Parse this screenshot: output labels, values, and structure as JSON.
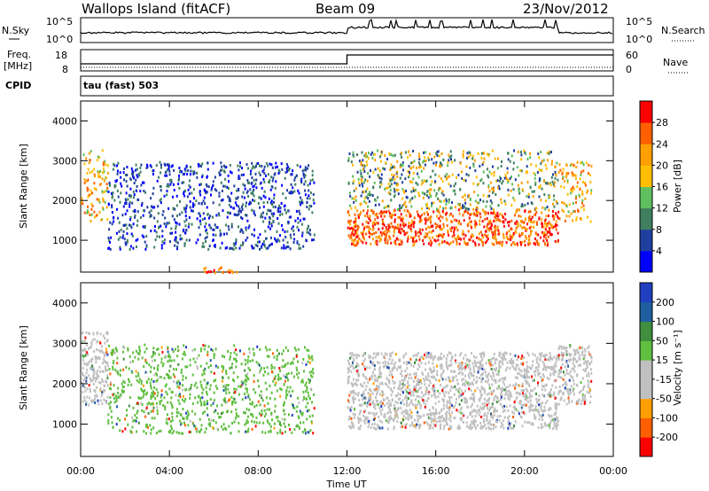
{
  "header": {
    "station": "Wallops Island (fitACF)",
    "beam": "Beam 09",
    "date": "23/Nov/2012"
  },
  "top_panel": {
    "left_label": "N.Sky",
    "right_label": "N.Search",
    "left_ticks": [
      "10^5",
      "10^0"
    ],
    "right_ticks": [
      "10^5",
      "10^0"
    ]
  },
  "freq_panel": {
    "left_label_line1": "Freq.",
    "left_label_line2": "[MHz]",
    "right_label": "Nave",
    "left_ticks": [
      "18",
      "8"
    ],
    "right_ticks": [
      "60",
      "0"
    ]
  },
  "cpid_panel": {
    "label": "CPID",
    "text": "tau (fast) 503"
  },
  "colors": {
    "power_scale": [
      "#0000ff",
      "#1f3f9f",
      "#3f7f5f",
      "#5fbf5f",
      "#ffbf00",
      "#ff9f00",
      "#ff5f00",
      "#ff0000"
    ],
    "velocity_scale": [
      "#ff0000",
      "#ff5f00",
      "#ff9f00",
      "#c0c0c0",
      "#c0c0c0",
      "#5fbf3f",
      "#3f8f3f",
      "#1f5f9f",
      "#1f3fbf"
    ]
  },
  "chart_data": [
    {
      "type": "heatmap",
      "title": "",
      "xlabel": "",
      "ylabel": "Slant Range [km]",
      "xlim": [
        "00:00",
        "24:00"
      ],
      "ylim": [
        200,
        4500
      ],
      "x_ticks": [
        "00:00",
        "04:00",
        "08:00",
        "12:00",
        "16:00",
        "20:00",
        "00:00"
      ],
      "y_ticks": [
        1000,
        2000,
        3000,
        4000
      ],
      "colorbar_label": "Power [dB]",
      "colorbar_ticks": [
        "4",
        "8",
        "12",
        "16",
        "20",
        "24",
        "28"
      ],
      "colorbar_range": [
        0,
        32
      ],
      "regions": [
        {
          "t_start": 0.0,
          "t_end": 1.2,
          "r_min": 1500,
          "r_max": 3300,
          "level": "high-edge"
        },
        {
          "t_start": 1.2,
          "t_end": 10.5,
          "r_min": 800,
          "r_max": 3000,
          "level": "low"
        },
        {
          "t_start": 5.5,
          "t_end": 7.0,
          "r_min": 200,
          "r_max": 350,
          "level": "high"
        },
        {
          "t_start": 12.0,
          "t_end": 21.5,
          "r_min": 900,
          "r_max": 1800,
          "level": "high"
        },
        {
          "t_start": 12.0,
          "t_end": 21.5,
          "r_min": 1800,
          "r_max": 3300,
          "level": "mixed"
        },
        {
          "t_start": 21.5,
          "t_end": 23.0,
          "r_min": 1500,
          "r_max": 3000,
          "level": "high-edge"
        }
      ]
    },
    {
      "type": "heatmap",
      "title": "",
      "xlabel": "Time UT",
      "ylabel": "Slant Range [km]",
      "xlim": [
        "00:00",
        "24:00"
      ],
      "ylim": [
        200,
        4500
      ],
      "x_ticks": [
        "00:00",
        "04:00",
        "08:00",
        "12:00",
        "16:00",
        "20:00",
        "00:00"
      ],
      "y_ticks": [
        1000,
        2000,
        3000,
        4000
      ],
      "colorbar_label": "Velocity [m s⁻¹]",
      "colorbar_ticks": [
        "200",
        "100",
        "50",
        "15",
        "-15",
        "-50",
        "-100",
        "-200"
      ],
      "colorbar_range": [
        -250,
        250
      ],
      "regions": [
        {
          "t_start": 0.0,
          "t_end": 1.2,
          "r_min": 1500,
          "r_max": 3300,
          "level": "grey"
        },
        {
          "t_start": 1.2,
          "t_end": 10.5,
          "r_min": 800,
          "r_max": 3000,
          "level": "green"
        },
        {
          "t_start": 12.0,
          "t_end": 21.5,
          "r_min": 900,
          "r_max": 2800,
          "level": "grey"
        },
        {
          "t_start": 21.5,
          "t_end": 23.0,
          "r_min": 1500,
          "r_max": 3000,
          "level": "grey"
        }
      ]
    }
  ]
}
